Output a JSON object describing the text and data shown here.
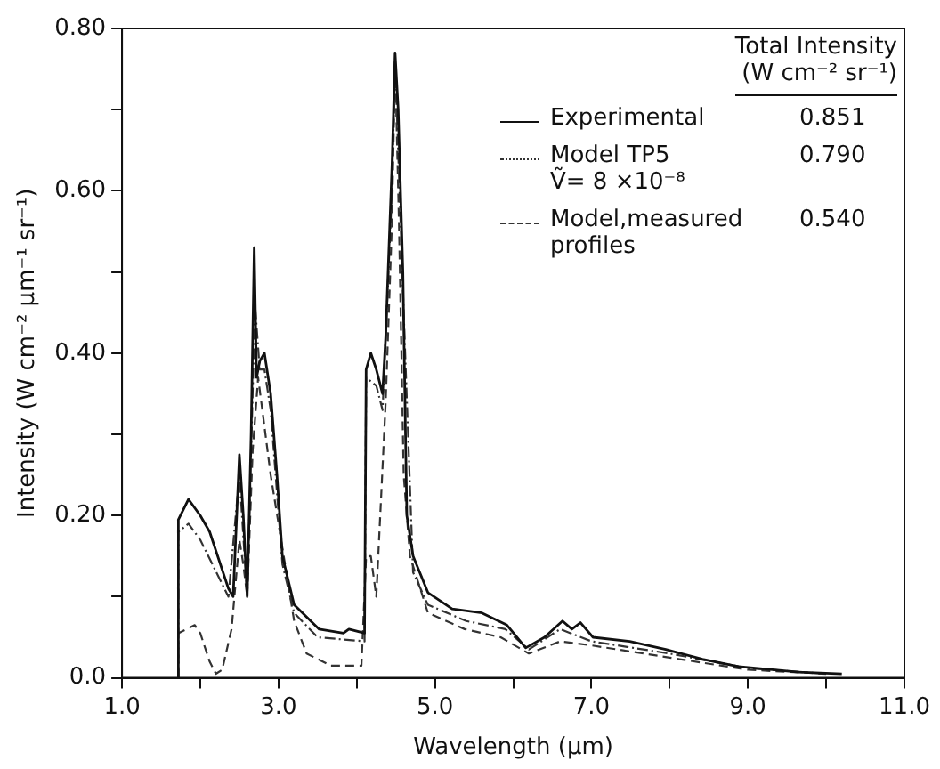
{
  "chart_data": {
    "type": "line",
    "xlabel": "Wavelength (μm)",
    "ylabel": "Intensity (W cm⁻² μm⁻¹ sr⁻¹)",
    "legend_title": "Total Intensity\n(W cm⁻² sr⁻¹)",
    "legend": "top right",
    "grid": false,
    "marker": "none",
    "xlim": [
      1,
      11
    ],
    "ylim": [
      0,
      0.8
    ],
    "xticks": [
      {
        "value": 1,
        "label": "1.0"
      },
      {
        "value": 2,
        "label": null
      },
      {
        "value": 3,
        "label": "3.0"
      },
      {
        "value": 4,
        "label": null
      },
      {
        "value": 5,
        "label": "5.0"
      },
      {
        "value": 6,
        "label": null
      },
      {
        "value": 7,
        "label": "7.0"
      },
      {
        "value": 8,
        "label": null
      },
      {
        "value": 9,
        "label": "9.0"
      },
      {
        "value": 10,
        "label": null
      },
      {
        "value": 11,
        "label": "11.0"
      }
    ],
    "yticks": [
      {
        "value": 0,
        "label": "0.0"
      },
      {
        "value": 0.1,
        "label": null
      },
      {
        "value": 0.2,
        "label": "0.20"
      },
      {
        "value": 0.3,
        "label": null
      },
      {
        "value": 0.4,
        "label": "0.40"
      },
      {
        "value": 0.5,
        "label": null
      },
      {
        "value": 0.6,
        "label": "0.60"
      },
      {
        "value": 0.7,
        "label": null
      },
      {
        "value": 0.8,
        "label": "0.80"
      }
    ],
    "annotations": [
      "0.851",
      "0.790",
      "0.540"
    ],
    "series": [
      {
        "name": "Experimental",
        "color": "#111111",
        "line_style": "solid",
        "x": [
          1.72,
          1.72,
          1.85,
          2.0,
          2.12,
          2.36,
          2.42,
          2.5,
          2.55,
          2.6,
          2.65,
          2.69,
          2.72,
          2.76,
          2.82,
          2.9,
          2.98,
          3.05,
          3.2,
          3.52,
          3.83,
          3.9,
          4.1,
          4.12,
          4.18,
          4.25,
          4.33,
          4.37,
          4.45,
          4.49,
          4.53,
          4.59,
          4.64,
          4.72,
          4.91,
          5.22,
          5.6,
          5.92,
          6.16,
          6.4,
          6.63,
          6.75,
          6.86,
          7.02,
          7.49,
          7.95,
          8.42,
          8.88,
          9.65,
          10.2
        ],
        "values": [
          0,
          0.195,
          0.22,
          0.2,
          0.18,
          0.11,
          0.1,
          0.275,
          0.2,
          0.1,
          0.3,
          0.53,
          0.37,
          0.39,
          0.4,
          0.35,
          0.25,
          0.15,
          0.09,
          0.06,
          0.055,
          0.06,
          0.055,
          0.38,
          0.4,
          0.38,
          0.35,
          0.42,
          0.63,
          0.77,
          0.7,
          0.5,
          0.2,
          0.15,
          0.105,
          0.085,
          0.08,
          0.065,
          0.037,
          0.05,
          0.07,
          0.06,
          0.068,
          0.05,
          0.045,
          0.035,
          0.023,
          0.014,
          0.007,
          0.005
        ]
      },
      {
        "name": "Model TP5\nṼ= 8 ×10⁻⁸",
        "color": "#333333",
        "line_style": "dotted",
        "x": [
          1.72,
          1.72,
          1.85,
          2.0,
          2.36,
          2.5,
          2.6,
          2.7,
          2.76,
          2.82,
          2.9,
          3.05,
          3.2,
          3.5,
          4.1,
          4.12,
          4.25,
          4.33,
          4.45,
          4.49,
          4.6,
          4.72,
          4.91,
          5.4,
          5.9,
          6.2,
          6.6,
          7.0,
          8.0,
          9.0,
          10.0
        ],
        "values": [
          0,
          0.18,
          0.19,
          0.17,
          0.1,
          0.25,
          0.1,
          0.46,
          0.38,
          0.38,
          0.33,
          0.14,
          0.08,
          0.05,
          0.045,
          0.37,
          0.36,
          0.33,
          0.6,
          0.76,
          0.45,
          0.13,
          0.09,
          0.07,
          0.06,
          0.035,
          0.06,
          0.045,
          0.03,
          0.012,
          0.005
        ]
      },
      {
        "name": "Model,measured profiles",
        "color": "#333333",
        "line_style": "dashed",
        "x": [
          1.72,
          1.72,
          1.93,
          2.0,
          2.12,
          2.2,
          2.28,
          2.4,
          2.5,
          2.55,
          2.6,
          2.67,
          2.74,
          2.82,
          2.9,
          3.05,
          3.2,
          3.36,
          3.67,
          4.06,
          4.12,
          4.18,
          4.25,
          4.37,
          4.45,
          4.49,
          4.54,
          4.6,
          4.68,
          4.91,
          5.38,
          5.84,
          6.2,
          6.6,
          7.0,
          8.0,
          9.0,
          10.0
        ],
        "values": [
          0,
          0.055,
          0.065,
          0.055,
          0.02,
          0.005,
          0.01,
          0.06,
          0.17,
          0.14,
          0.1,
          0.28,
          0.37,
          0.31,
          0.25,
          0.16,
          0.07,
          0.03,
          0.015,
          0.015,
          0.15,
          0.15,
          0.1,
          0.34,
          0.56,
          0.76,
          0.56,
          0.25,
          0.15,
          0.08,
          0.06,
          0.05,
          0.03,
          0.045,
          0.04,
          0.025,
          0.01,
          0.005
        ]
      }
    ]
  }
}
